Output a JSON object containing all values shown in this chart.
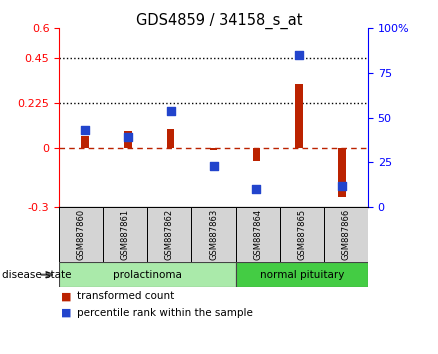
{
  "title": "GDS4859 / 34158_s_at",
  "samples": [
    "GSM887860",
    "GSM887861",
    "GSM887862",
    "GSM887863",
    "GSM887864",
    "GSM887865",
    "GSM887866"
  ],
  "transformed_count": [
    0.06,
    0.085,
    0.095,
    -0.012,
    -0.07,
    0.32,
    -0.25
  ],
  "percentile_rank_right": [
    43,
    39,
    54,
    23,
    10,
    85,
    12
  ],
  "disease_groups": [
    {
      "label": "prolactinoma",
      "start": 0,
      "end": 4,
      "color": "#aaeaaa"
    },
    {
      "label": "normal pituitary",
      "start": 4,
      "end": 7,
      "color": "#44cc44"
    }
  ],
  "ylim_left": [
    -0.3,
    0.6
  ],
  "ylim_right": [
    0,
    100
  ],
  "yticks_left": [
    -0.3,
    0.0,
    0.225,
    0.45,
    0.6
  ],
  "yticks_right": [
    0,
    25,
    50,
    75,
    100
  ],
  "hlines": [
    0.225,
    0.45
  ],
  "bar_color_red": "#bb2200",
  "marker_color_blue": "#2244cc",
  "background_color": "#ffffff",
  "legend_red": "transformed count",
  "legend_blue": "percentile rank within the sample",
  "disease_state_label": "disease state",
  "bar_width": 0.18
}
